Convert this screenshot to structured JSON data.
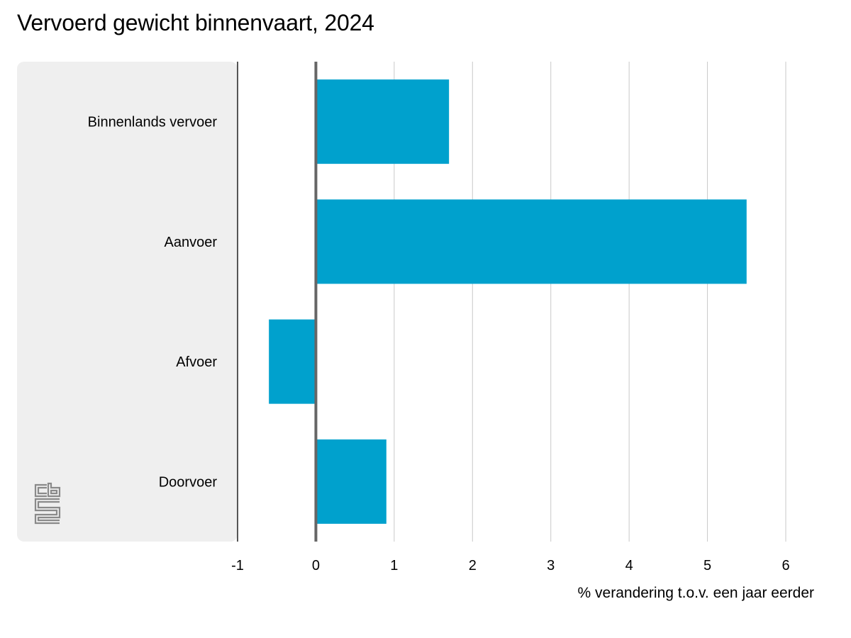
{
  "chart_data": {
    "type": "bar",
    "orientation": "horizontal",
    "title": "Vervoerd gewicht binnenvaart, 2024",
    "xlabel": "% verandering t.o.v. een jaar eerder",
    "ylabel": "",
    "categories": [
      "Binnenlands vervoer",
      "Aanvoer",
      "Afvoer",
      "Doorvoer"
    ],
    "values": [
      1.7,
      5.5,
      -0.6,
      0.9
    ],
    "xlim": [
      -1,
      6
    ],
    "xticks": [
      "-1",
      "0",
      "1",
      "2",
      "3",
      "4",
      "5",
      "6"
    ],
    "grid": true,
    "bar_color": "#00a1cd",
    "label_panel_color": "#efefef"
  },
  "logo": {
    "name": "cbs-logo",
    "text": "cbs"
  }
}
